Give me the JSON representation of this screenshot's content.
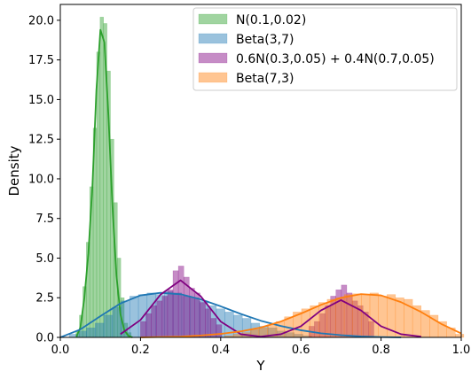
{
  "chart_data": {
    "type": "histogram",
    "xlabel": "Y",
    "ylabel": "Density",
    "xlim": [
      0.0,
      1.0
    ],
    "ylim": [
      0.0,
      21.0
    ],
    "x_ticks": [
      "0.0",
      "0.2",
      "0.4",
      "0.6",
      "0.8",
      "1.0"
    ],
    "y_ticks": [
      "0.0",
      "2.5",
      "5.0",
      "7.5",
      "10.0",
      "12.5",
      "15.0",
      "17.5",
      "20.0"
    ],
    "x_tick_values": [
      0.0,
      0.2,
      0.4,
      0.6,
      0.8,
      1.0
    ],
    "y_tick_values": [
      0.0,
      2.5,
      5.0,
      7.5,
      10.0,
      12.5,
      15.0,
      17.5,
      20.0
    ],
    "legend_position": "top-right",
    "grid": false,
    "series": [
      {
        "name": "N(0.1,0.02)",
        "color": "#2ca02c",
        "bin_width": 0.0086,
        "bins": [
          [
            0.039,
            0.4
          ],
          [
            0.0476,
            1.4
          ],
          [
            0.0562,
            3.2
          ],
          [
            0.0648,
            6.0
          ],
          [
            0.0734,
            9.5
          ],
          [
            0.082,
            13.2
          ],
          [
            0.0906,
            18.0
          ],
          [
            0.0992,
            20.2
          ],
          [
            0.1078,
            19.8
          ],
          [
            0.1164,
            16.8
          ],
          [
            0.125,
            12.5
          ],
          [
            0.1336,
            8.5
          ],
          [
            0.1422,
            5.0
          ],
          [
            0.1508,
            2.5
          ],
          [
            0.1594,
            0.9
          ],
          [
            0.168,
            0.3
          ]
        ],
        "kde": [
          [
            0.04,
            0.04
          ],
          [
            0.05,
            0.62
          ],
          [
            0.06,
            2.5
          ],
          [
            0.07,
            5.3
          ],
          [
            0.08,
            9.5
          ],
          [
            0.09,
            15.6
          ],
          [
            0.1,
            19.4
          ],
          [
            0.11,
            18.6
          ],
          [
            0.12,
            14.0
          ],
          [
            0.13,
            8.3
          ],
          [
            0.14,
            3.9
          ],
          [
            0.15,
            1.45
          ],
          [
            0.16,
            0.42
          ],
          [
            0.17,
            0.1
          ],
          [
            0.18,
            0.0
          ]
        ]
      },
      {
        "name": "Beta(3,7)",
        "color": "#1f77b4",
        "bin_width": 0.0216,
        "bins": [
          [
            0.022,
            0.2
          ],
          [
            0.0436,
            0.4
          ],
          [
            0.0652,
            0.6
          ],
          [
            0.0868,
            0.9
          ],
          [
            0.1084,
            1.4
          ],
          [
            0.13,
            1.9
          ],
          [
            0.1516,
            2.3
          ],
          [
            0.1732,
            2.6
          ],
          [
            0.1948,
            2.7
          ],
          [
            0.2164,
            2.8
          ],
          [
            0.238,
            2.7
          ],
          [
            0.2596,
            2.9
          ],
          [
            0.2812,
            2.8
          ],
          [
            0.3028,
            2.6
          ],
          [
            0.3244,
            2.5
          ],
          [
            0.346,
            2.3
          ],
          [
            0.3676,
            2.0
          ],
          [
            0.3892,
            1.8
          ],
          [
            0.4108,
            1.6
          ],
          [
            0.4324,
            1.4
          ],
          [
            0.454,
            1.2
          ],
          [
            0.4756,
            0.9
          ],
          [
            0.4972,
            0.7
          ],
          [
            0.5188,
            0.6
          ],
          [
            0.5404,
            0.4
          ],
          [
            0.562,
            0.3
          ],
          [
            0.5836,
            0.2
          ],
          [
            0.6052,
            0.1
          ]
        ],
        "kde": [
          [
            0.0,
            0.0
          ],
          [
            0.05,
            0.5
          ],
          [
            0.1,
            1.34
          ],
          [
            0.15,
            2.14
          ],
          [
            0.2,
            2.65
          ],
          [
            0.25,
            2.81
          ],
          [
            0.3,
            2.72
          ],
          [
            0.35,
            2.4
          ],
          [
            0.4,
            1.96
          ],
          [
            0.45,
            1.48
          ],
          [
            0.5,
            1.05
          ],
          [
            0.55,
            0.72
          ],
          [
            0.6,
            0.45
          ],
          [
            0.65,
            0.26
          ],
          [
            0.7,
            0.14
          ],
          [
            0.75,
            0.06
          ],
          [
            0.8,
            0.02
          ],
          [
            0.85,
            0.0
          ]
        ]
      },
      {
        "name": "0.6N(0.3,0.05) + 0.4N(0.7,0.05)",
        "color": "#800080",
        "bin_width": 0.0135,
        "bins": [
          [
            0.2,
            1.0
          ],
          [
            0.2135,
            1.5
          ],
          [
            0.227,
            2.0
          ],
          [
            0.2405,
            2.3
          ],
          [
            0.254,
            2.6
          ],
          [
            0.2675,
            3.0
          ],
          [
            0.281,
            4.2
          ],
          [
            0.2945,
            4.5
          ],
          [
            0.308,
            3.8
          ],
          [
            0.3215,
            3.1
          ],
          [
            0.335,
            2.8
          ],
          [
            0.3485,
            2.2
          ],
          [
            0.362,
            1.8
          ],
          [
            0.3755,
            1.2
          ],
          [
            0.389,
            0.8
          ],
          [
            0.62,
            0.7
          ],
          [
            0.6335,
            1.0
          ],
          [
            0.647,
            1.5
          ],
          [
            0.6605,
            2.0
          ],
          [
            0.674,
            2.6
          ],
          [
            0.6875,
            3.0
          ],
          [
            0.701,
            3.3
          ],
          [
            0.7145,
            2.8
          ],
          [
            0.728,
            2.3
          ],
          [
            0.7415,
            2.0
          ],
          [
            0.755,
            1.6
          ],
          [
            0.7685,
            1.0
          ]
        ],
        "kde": [
          [
            0.15,
            0.2
          ],
          [
            0.2,
            1.1
          ],
          [
            0.25,
            2.7
          ],
          [
            0.3,
            3.6
          ],
          [
            0.35,
            2.6
          ],
          [
            0.4,
            1.0
          ],
          [
            0.45,
            0.2
          ],
          [
            0.5,
            0.05
          ],
          [
            0.55,
            0.2
          ],
          [
            0.6,
            0.7
          ],
          [
            0.65,
            1.7
          ],
          [
            0.7,
            2.35
          ],
          [
            0.75,
            1.7
          ],
          [
            0.8,
            0.7
          ],
          [
            0.85,
            0.2
          ],
          [
            0.9,
            0.05
          ]
        ]
      },
      {
        "name": "Beta(7,3)",
        "color": "#ff7f0e",
        "bin_width": 0.0213,
        "bins": [
          [
            0.41,
            0.1
          ],
          [
            0.4313,
            0.2
          ],
          [
            0.4526,
            0.3
          ],
          [
            0.4739,
            0.5
          ],
          [
            0.4952,
            0.6
          ],
          [
            0.5165,
            0.8
          ],
          [
            0.5378,
            1.0
          ],
          [
            0.5591,
            1.3
          ],
          [
            0.5804,
            1.6
          ],
          [
            0.6017,
            1.8
          ],
          [
            0.623,
            2.0
          ],
          [
            0.6443,
            2.2
          ],
          [
            0.6656,
            2.4
          ],
          [
            0.6869,
            2.5
          ],
          [
            0.7082,
            2.7
          ],
          [
            0.7295,
            2.75
          ],
          [
            0.7508,
            2.7
          ],
          [
            0.7721,
            2.8
          ],
          [
            0.7934,
            2.6
          ],
          [
            0.8147,
            2.7
          ],
          [
            0.836,
            2.5
          ],
          [
            0.8573,
            2.4
          ],
          [
            0.8786,
            2.0
          ],
          [
            0.8999,
            1.7
          ],
          [
            0.9212,
            1.4
          ],
          [
            0.9425,
            1.0
          ],
          [
            0.9638,
            0.6
          ],
          [
            0.9851,
            0.2
          ]
        ],
        "kde": [
          [
            0.2,
            0.0
          ],
          [
            0.3,
            0.05
          ],
          [
            0.35,
            0.12
          ],
          [
            0.4,
            0.22
          ],
          [
            0.45,
            0.38
          ],
          [
            0.5,
            0.62
          ],
          [
            0.55,
            1.0
          ],
          [
            0.6,
            1.5
          ],
          [
            0.65,
            2.05
          ],
          [
            0.7,
            2.5
          ],
          [
            0.75,
            2.73
          ],
          [
            0.8,
            2.65
          ],
          [
            0.85,
            2.22
          ],
          [
            0.9,
            1.6
          ],
          [
            0.95,
            0.85
          ],
          [
            1.0,
            0.25
          ]
        ]
      }
    ]
  }
}
